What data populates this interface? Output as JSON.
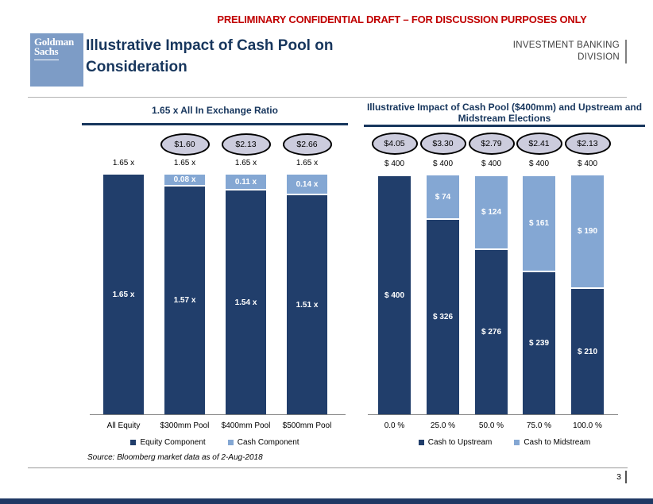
{
  "slide": {
    "disclaimer": "PRELIMINARY CONFIDENTIAL DRAFT – FOR DISCUSSION PURPOSES ONLY",
    "logo_line1": "Goldman",
    "logo_line2": "Sachs",
    "title_line1": "Illustrative Impact of Cash Pool on",
    "title_line2": "Consideration",
    "division_line1": "INVESTMENT BANKING",
    "division_line2": "DIVISION",
    "source_note": "Source: Bloomberg market data as of 2-Aug-2018",
    "page_number": "3"
  },
  "colors": {
    "navy": "#213E6B",
    "light_blue": "#84A7D3",
    "heading_navy": "#17365D",
    "warning_red": "#C00000",
    "logo_blue": "#7D9CC6",
    "ellipse_fill": "#CCCCDD"
  },
  "chart_data": [
    {
      "type": "bar",
      "stacked": true,
      "title": "1.65 x All In Exchange Ratio",
      "categories": [
        "All Equity",
        "$300mm Pool",
        "$400mm Pool",
        "$500mm Pool"
      ],
      "series": [
        {
          "name": "Equity Component",
          "color": "#213E6B",
          "values": [
            1.65,
            1.57,
            1.54,
            1.51
          ],
          "labels": [
            "1.65 x",
            "1.57 x",
            "1.54 x",
            "1.51 x"
          ]
        },
        {
          "name": "Cash Component",
          "color": "#84A7D3",
          "values": [
            0,
            0.08,
            0.11,
            0.14
          ],
          "labels": [
            "",
            "0.08 x",
            "0.11 x",
            "0.14 x"
          ]
        }
      ],
      "totals": [
        "1.65 x",
        "1.65 x",
        "1.65 x",
        "1.65 x"
      ],
      "ellipse_values": [
        "",
        "$1.60",
        "$2.13",
        "$2.66"
      ],
      "ylim": [
        0,
        1.65
      ],
      "legend_position": "bottom",
      "grid": false
    },
    {
      "type": "bar",
      "stacked": true,
      "title": "Illustrative Impact of Cash Pool ($400mm) and Upstream and Midstream Elections",
      "categories": [
        "0.0 %",
        "25.0 %",
        "50.0 %",
        "75.0 %",
        "100.0 %"
      ],
      "series": [
        {
          "name": "Cash to Upstream",
          "color": "#213E6B",
          "values": [
            400,
            326,
            276,
            239,
            210
          ],
          "labels": [
            "$ 400",
            "$ 326",
            "$ 276",
            "$ 239",
            "$ 210"
          ]
        },
        {
          "name": "Cash to Midstream",
          "color": "#84A7D3",
          "values": [
            0,
            74,
            124,
            161,
            190
          ],
          "labels": [
            "",
            "$ 74",
            "$ 124",
            "$ 161",
            "$ 190"
          ]
        }
      ],
      "totals": [
        "$ 400",
        "$ 400",
        "$ 400",
        "$ 400",
        "$ 400"
      ],
      "ellipse_values": [
        "$4.05",
        "$3.30",
        "$2.79",
        "$2.41",
        "$2.13"
      ],
      "ylim": [
        0,
        400
      ],
      "legend_position": "bottom",
      "grid": false
    }
  ]
}
